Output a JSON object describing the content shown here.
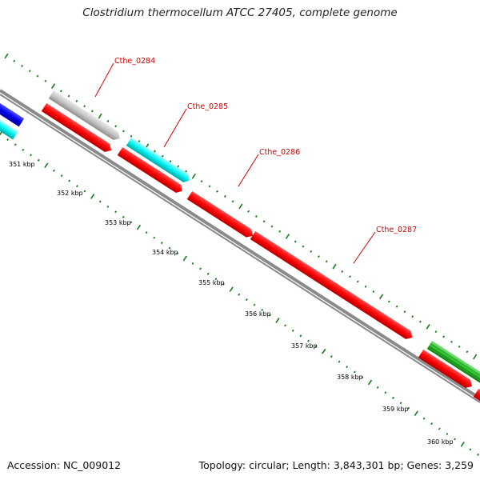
{
  "title": "Clostridium thermocellum ATCC 27405, complete genome",
  "footer": {
    "accession": "Accession: NC_009012",
    "summary": "Topology: circular; Length: 3,843,301 bp; Genes: 3,259"
  },
  "colors": {
    "backbone": "#8a8a8a",
    "ticks": "#1a7a1a",
    "label": "#d40000",
    "red": "#ff0000",
    "cyan": "#00ffff",
    "gray": "#c0c0c0",
    "blue": "#0000ee",
    "green": "#2ec42e"
  },
  "ruler_labels": [
    "351 kbp",
    "352 kbp",
    "353 kbp",
    "354 kbp",
    "355 kbp",
    "356 kbp",
    "357 kbp",
    "358 kbp",
    "359 kbp",
    "360 kbp"
  ],
  "gene_labels": [
    "Cthe_0284",
    "Cthe_0285",
    "Cthe_0286",
    "Cthe_0287"
  ]
}
